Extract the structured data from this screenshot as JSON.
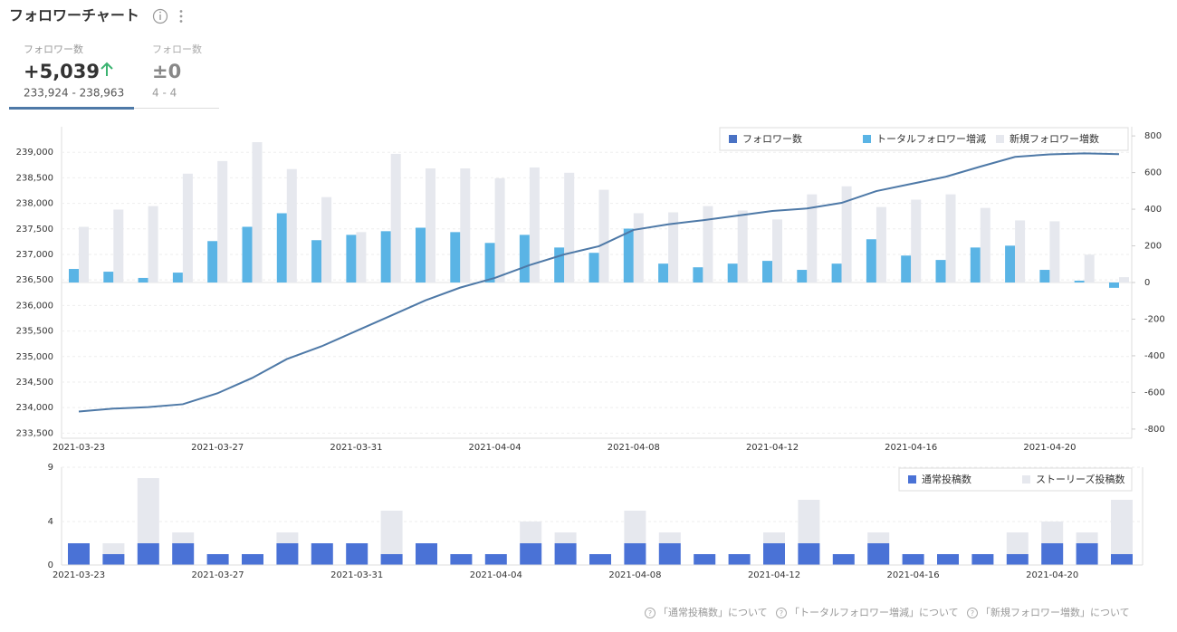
{
  "header": {
    "title": "フォロワーチャート"
  },
  "tabs": [
    {
      "label": "フォロワー数",
      "value": "+5,039",
      "range": "233,924 - 238,963"
    },
    {
      "label": "フォロー数",
      "value": "±0",
      "range": "4 - 4"
    }
  ],
  "chart_data": [
    {
      "type": "combo",
      "categories": [
        "2021-03-23",
        null,
        null,
        null,
        "2021-03-27",
        null,
        null,
        null,
        "2021-03-31",
        null,
        null,
        null,
        "2021-04-04",
        null,
        null,
        null,
        "2021-04-08",
        null,
        null,
        null,
        "2021-04-12",
        null,
        null,
        null,
        "2021-04-16",
        null,
        null,
        null,
        "2021-04-20",
        null,
        null
      ],
      "series": [
        {
          "name": "フォロワー数",
          "kind": "line",
          "axis": "y",
          "color": "#4e79a7",
          "legend_color": "#4a72c4",
          "values": [
            233924,
            233980,
            234010,
            234066,
            234280,
            234580,
            234950,
            235200,
            235500,
            235800,
            236100,
            236350,
            236540,
            236790,
            237000,
            237160,
            237480,
            237590,
            237670,
            237760,
            237850,
            237900,
            238010,
            238240,
            238380,
            238520,
            238720,
            238910,
            238960,
            238980,
            238963
          ]
        },
        {
          "name": "トータルフォロワー増減",
          "kind": "bar",
          "axis": "y2",
          "color": "#5ab4e5",
          "values": [
            74,
            59,
            25,
            54,
            226,
            304,
            378,
            231,
            260,
            280,
            299,
            275,
            216,
            260,
            191,
            162,
            294,
            103,
            83,
            103,
            118,
            69,
            103,
            236,
            147,
            123,
            191,
            201,
            69,
            10,
            -29
          ]
        },
        {
          "name": "新規フォロワー増数",
          "kind": "bar",
          "axis": "y2",
          "color": "#e6e8ee",
          "values": [
            304,
            398,
            417,
            594,
            663,
            766,
            619,
            466,
            275,
            702,
            623,
            623,
            569,
            628,
            599,
            506,
            378,
            383,
            417,
            393,
            344,
            481,
            525,
            412,
            452,
            481,
            407,
            339,
            334,
            152,
            29
          ]
        }
      ],
      "ylim": [
        233400,
        239500
      ],
      "yticks": [
        {
          "value": 233500,
          "label": "233,500"
        },
        {
          "value": 234000,
          "label": "234,000"
        },
        {
          "value": 234500,
          "label": "234,500"
        },
        {
          "value": 235000,
          "label": "235,000"
        },
        {
          "value": 235500,
          "label": "235,500"
        },
        {
          "value": 236000,
          "label": "236,000"
        },
        {
          "value": 236500,
          "label": "236,500"
        },
        {
          "value": 237000,
          "label": "237,000"
        },
        {
          "value": 237500,
          "label": "237,500"
        },
        {
          "value": 238000,
          "label": "238,000"
        },
        {
          "value": 238500,
          "label": "238,500"
        },
        {
          "value": 239000,
          "label": "239,000"
        }
      ],
      "y2lim": [
        -850,
        850
      ],
      "y2ticks": [
        -800,
        -600,
        -400,
        -200,
        0,
        200,
        400,
        600,
        800
      ],
      "grid": true,
      "legend": "top-right"
    },
    {
      "type": "stacked_bar",
      "categories": [
        "2021-03-23",
        null,
        null,
        null,
        "2021-03-27",
        null,
        null,
        null,
        "2021-03-31",
        null,
        null,
        null,
        "2021-04-04",
        null,
        null,
        null,
        "2021-04-08",
        null,
        null,
        null,
        "2021-04-12",
        null,
        null,
        null,
        "2021-04-16",
        null,
        null,
        null,
        "2021-04-20",
        null,
        null
      ],
      "series": [
        {
          "name": "通常投稿数",
          "color": "#4a72d6",
          "values": [
            2,
            1,
            2,
            2,
            1,
            1,
            2,
            2,
            2,
            1,
            2,
            1,
            1,
            2,
            2,
            1,
            2,
            2,
            1,
            1,
            2,
            2,
            1,
            2,
            1,
            1,
            1,
            1,
            2,
            2,
            1
          ]
        },
        {
          "name": "ストーリーズ投稿数",
          "color": "#e6e8ee",
          "values": [
            0,
            1,
            6,
            1,
            0,
            0,
            1,
            0,
            0,
            4,
            0,
            0,
            0,
            2,
            1,
            0,
            3,
            1,
            0,
            0,
            1,
            4,
            0,
            1,
            0,
            0,
            0,
            2,
            2,
            1,
            5
          ]
        }
      ],
      "ylim": [
        0,
        9
      ],
      "yticks": [
        0,
        4,
        9
      ],
      "grid": true,
      "legend": "top-right"
    }
  ],
  "footer": {
    "links": [
      "「通常投稿数」について",
      "「トータルフォロワー増減」について",
      "「新規フォロワー増数」について"
    ]
  }
}
